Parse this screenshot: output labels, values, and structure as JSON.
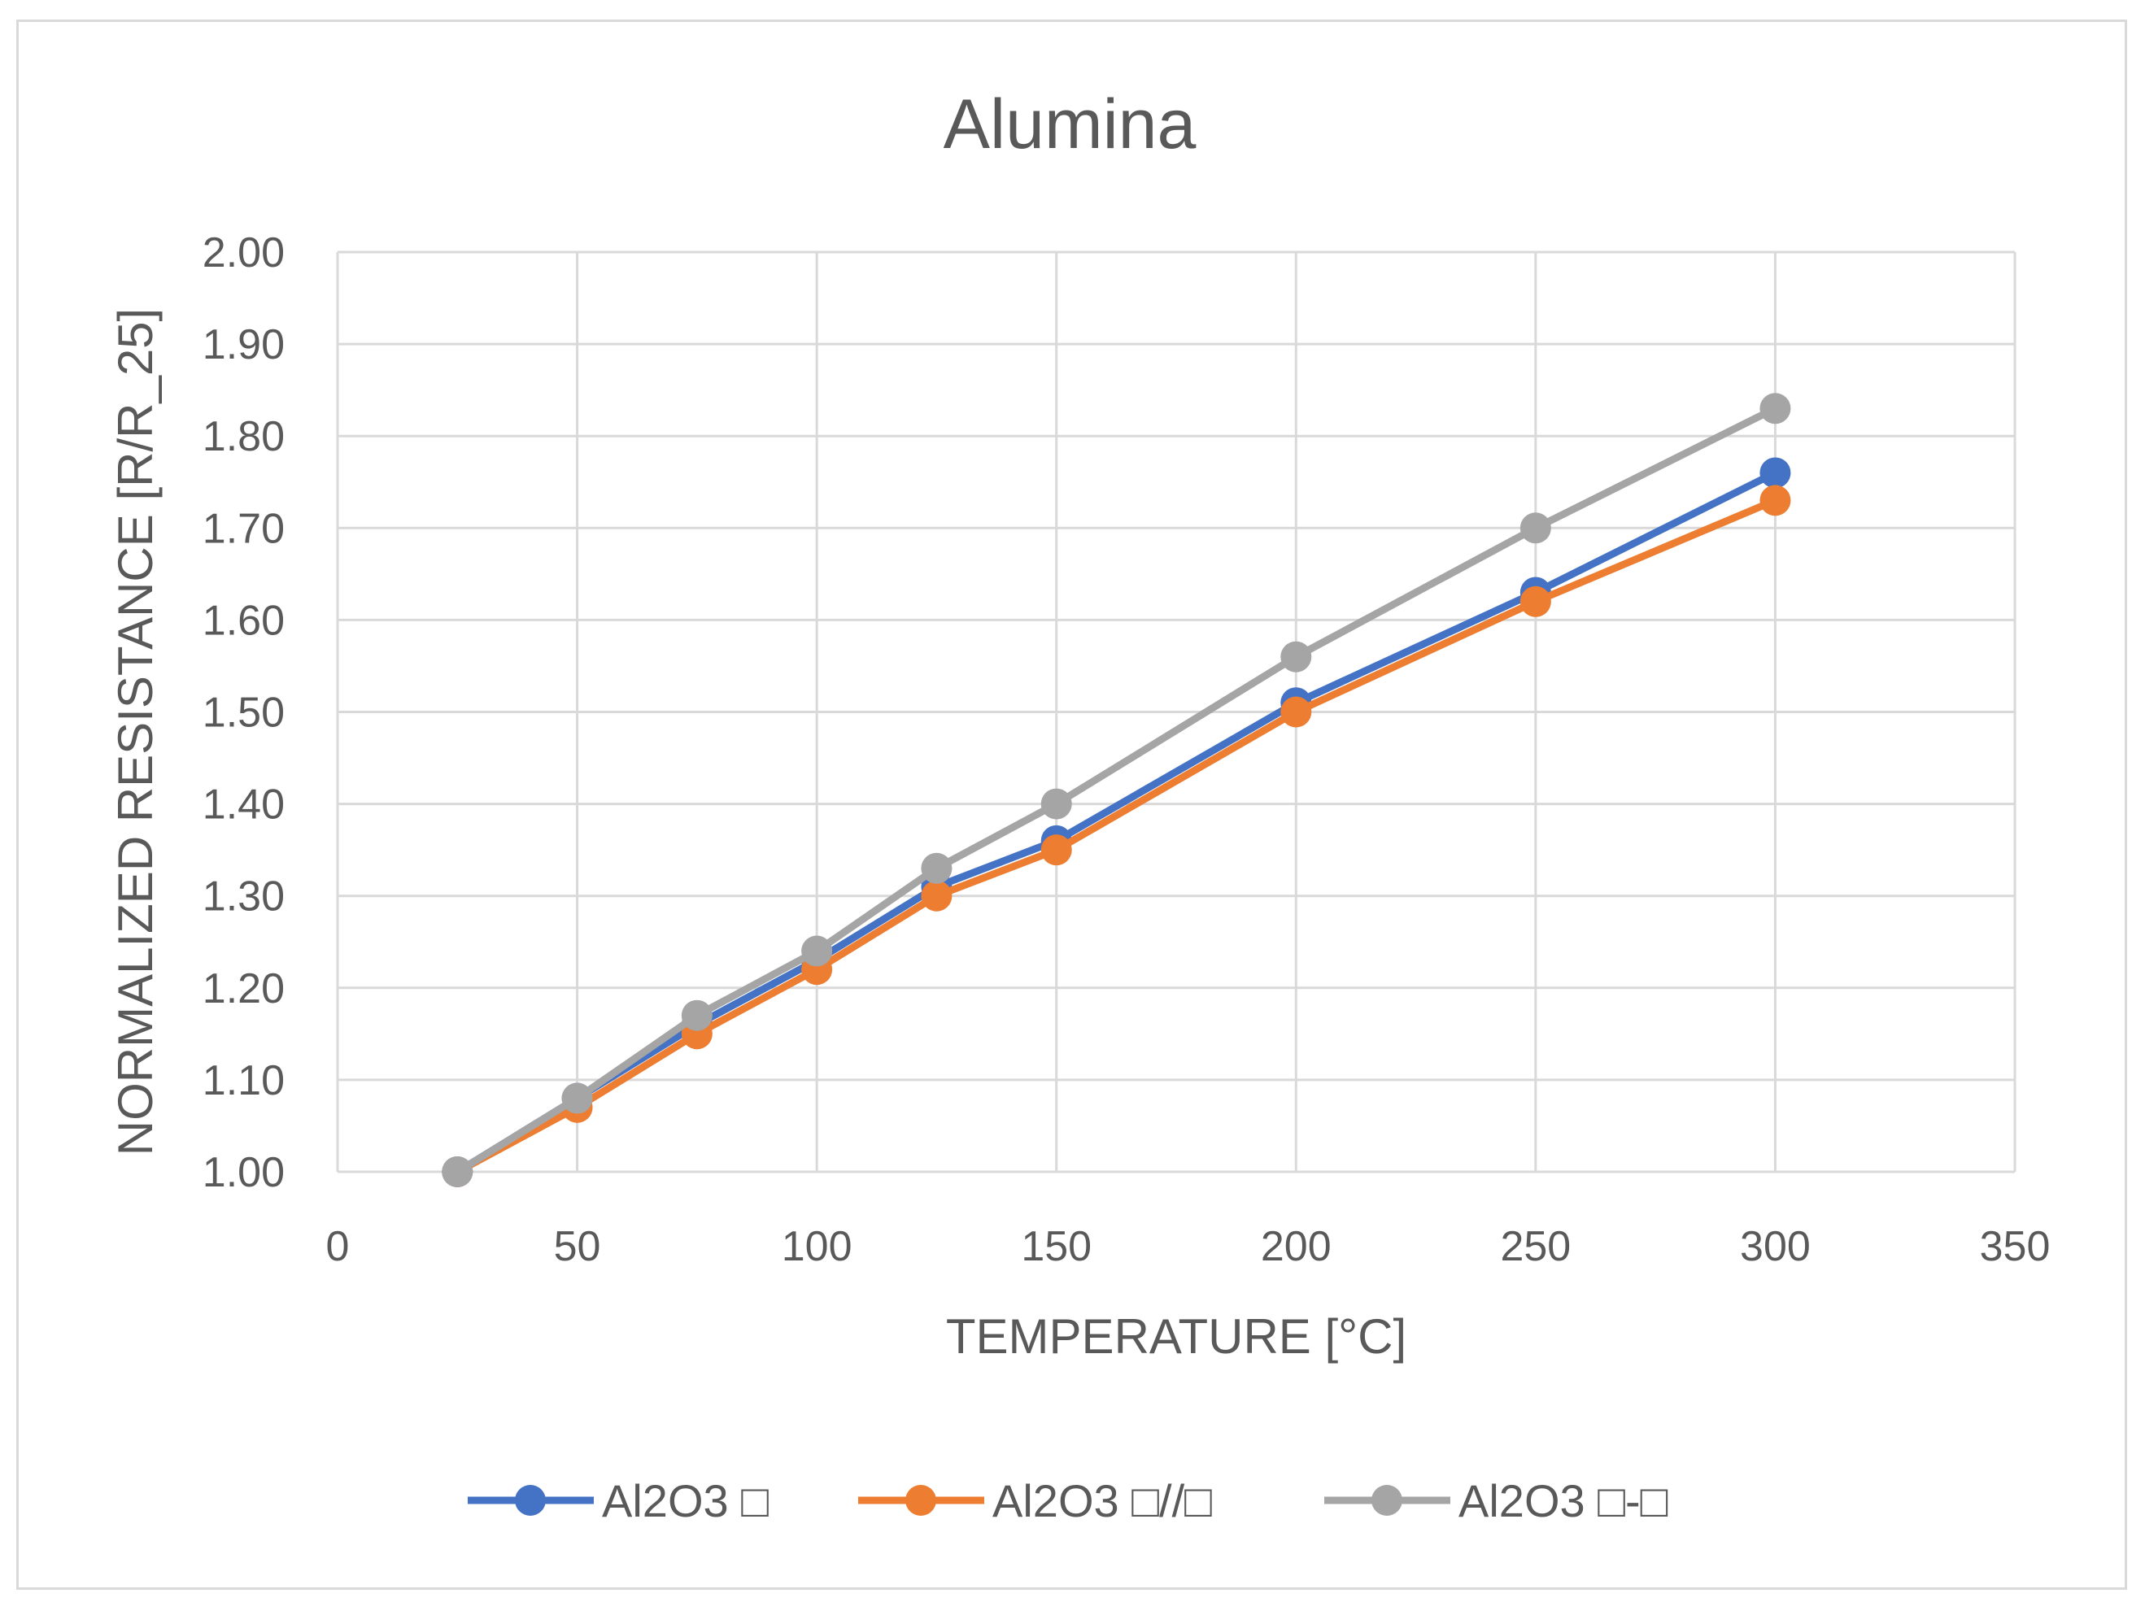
{
  "chart_data": {
    "type": "line",
    "title": "Alumina",
    "xlabel": "TEMPERATURE [°C]",
    "ylabel": "NORMALIZED RESISTANCE [R/R_25]",
    "xlim": [
      0,
      350
    ],
    "ylim": [
      1.0,
      2.0
    ],
    "xticks": [
      0,
      50,
      100,
      150,
      200,
      250,
      300,
      350
    ],
    "xtick_labels": [
      "0",
      "50",
      "100",
      "150",
      "200",
      "250",
      "300",
      "350"
    ],
    "yticks": [
      1.0,
      1.1,
      1.2,
      1.3,
      1.4,
      1.5,
      1.6,
      1.7,
      1.8,
      1.9,
      2.0
    ],
    "ytick_labels": [
      "1.00",
      "1.10",
      "1.20",
      "1.30",
      "1.40",
      "1.50",
      "1.60",
      "1.70",
      "1.80",
      "1.90",
      "2.00"
    ],
    "grid": true,
    "legend_position": "bottom",
    "x": [
      25,
      50,
      75,
      100,
      125,
      150,
      200,
      250,
      300
    ],
    "series": [
      {
        "name": "Al2O3 □",
        "color": "#4472c4",
        "values": [
          1.0,
          1.08,
          1.16,
          1.23,
          1.31,
          1.36,
          1.51,
          1.63,
          1.76
        ]
      },
      {
        "name": "Al2O3 □//□",
        "color": "#ed7d31",
        "values": [
          1.0,
          1.07,
          1.15,
          1.22,
          1.3,
          1.35,
          1.5,
          1.62,
          1.73
        ]
      },
      {
        "name": "Al2O3 □-□",
        "color": "#a5a5a5",
        "values": [
          1.0,
          1.08,
          1.17,
          1.24,
          1.33,
          1.4,
          1.56,
          1.7,
          1.83
        ]
      }
    ]
  }
}
